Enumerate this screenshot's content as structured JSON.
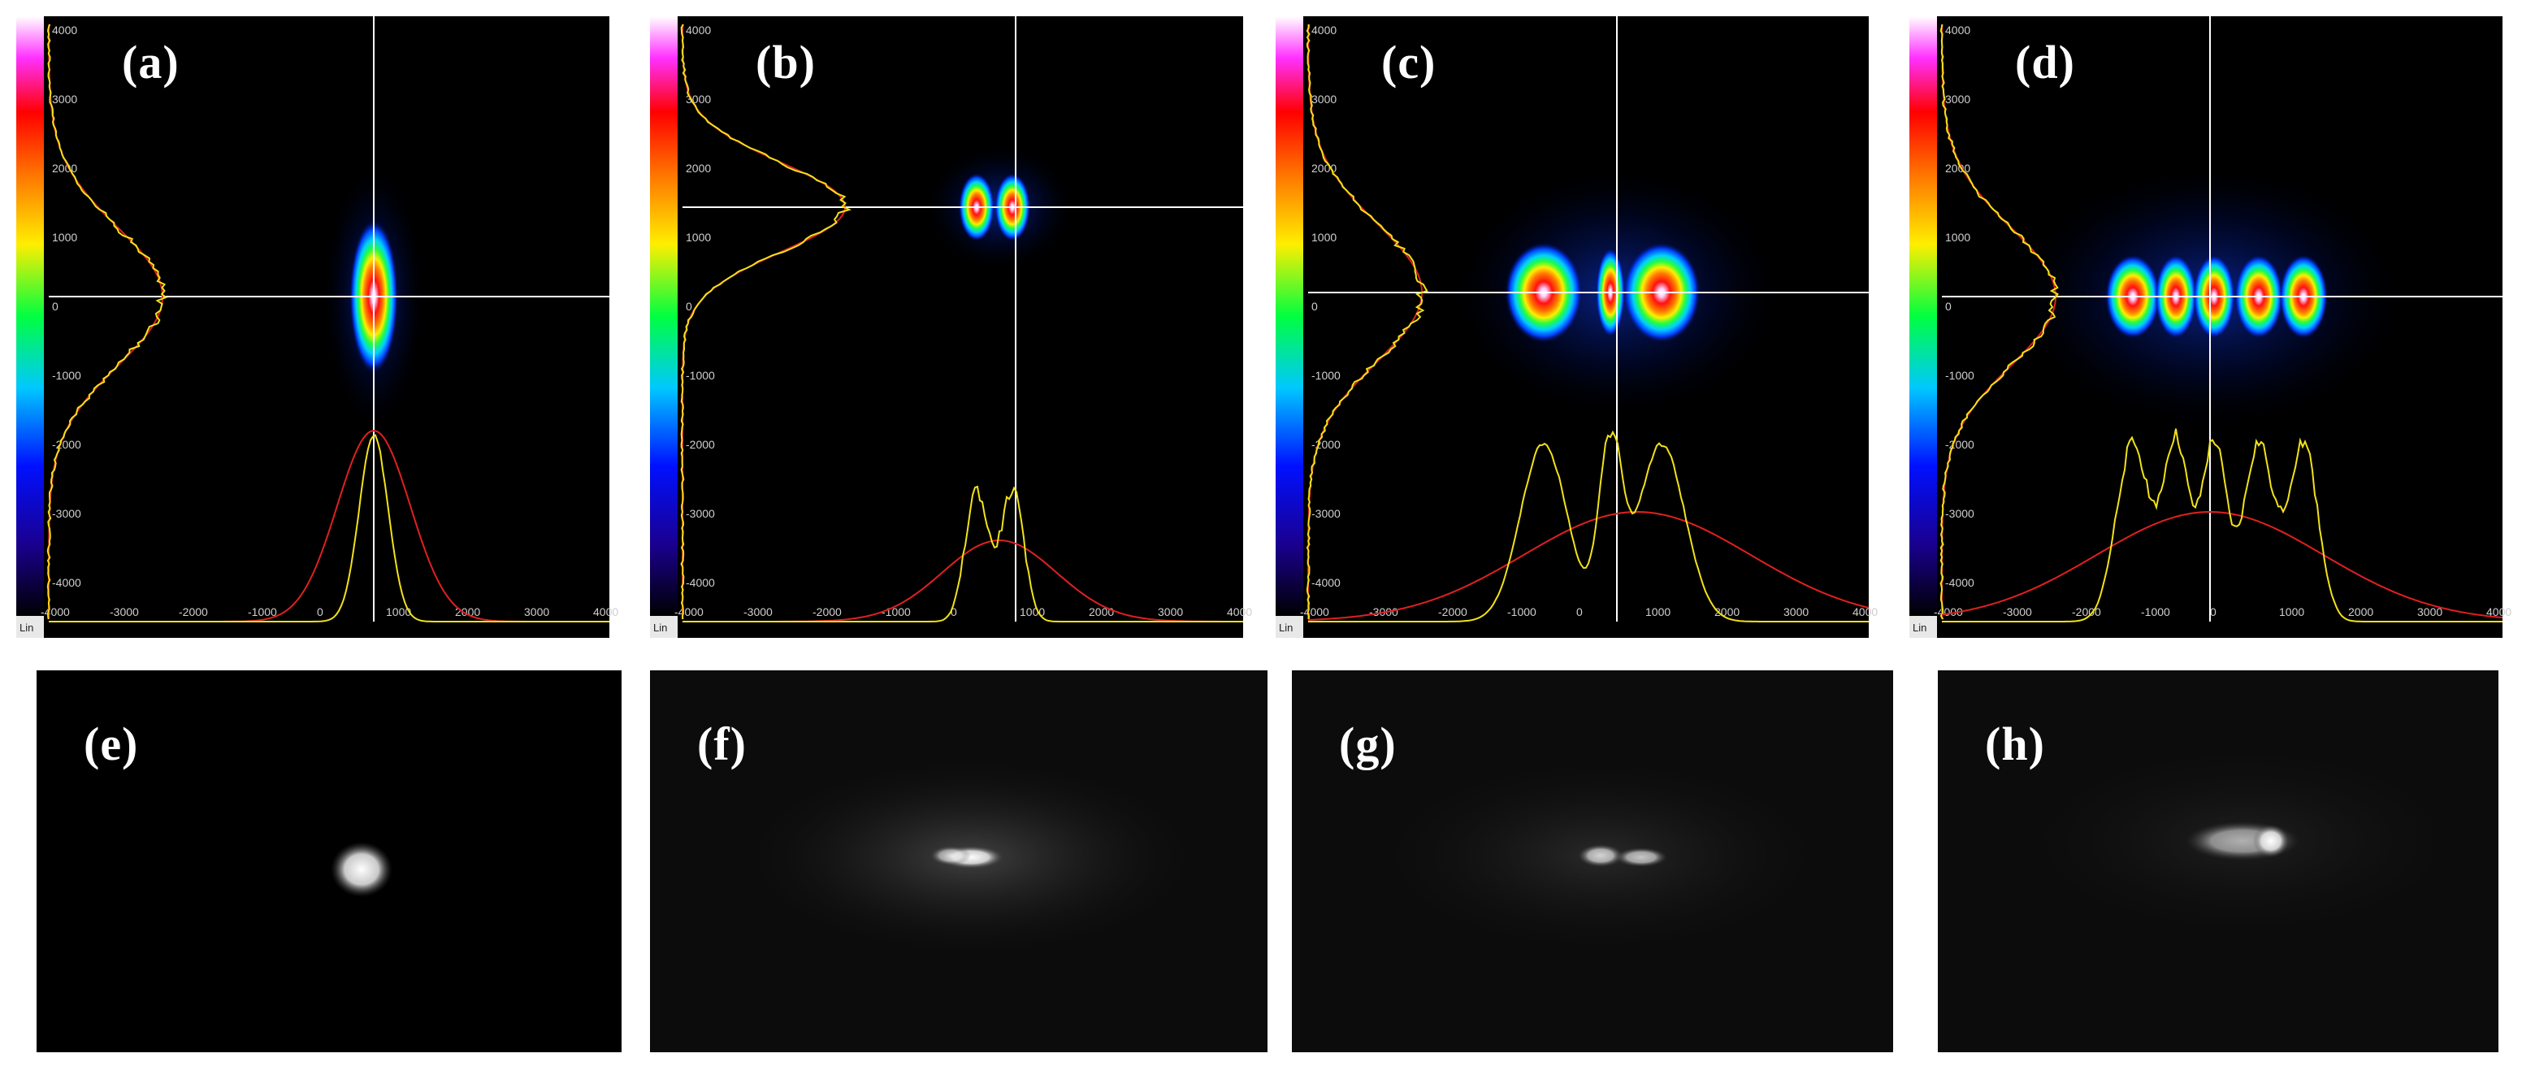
{
  "profiler_panels": [
    {
      "label": "(a)",
      "pattern": "single-lobe"
    },
    {
      "label": "(b)",
      "pattern": "two-lobe"
    },
    {
      "label": "(c)",
      "pattern": "three-lobe"
    },
    {
      "label": "(d)",
      "pattern": "multi-lobe"
    }
  ],
  "camera_panels": [
    {
      "label": "(e)"
    },
    {
      "label": "(f)"
    },
    {
      "label": "(g)"
    },
    {
      "label": "(h)"
    }
  ],
  "axis": {
    "x_ticks": [
      "-4000",
      "-3000",
      "-2000",
      "-1000",
      "0",
      "1000",
      "2000",
      "3000",
      "4000"
    ],
    "y_ticks": [
      "4000",
      "3000",
      "2000",
      "1000",
      "0",
      "-1000",
      "-2000",
      "-3000",
      "-4000"
    ],
    "scale_mode": "Lin"
  },
  "colors": {
    "measured_profile": "#f2e21a",
    "gaussian_fit": "#e02020",
    "crosshair": "#ffffff",
    "background": "#000000"
  }
}
